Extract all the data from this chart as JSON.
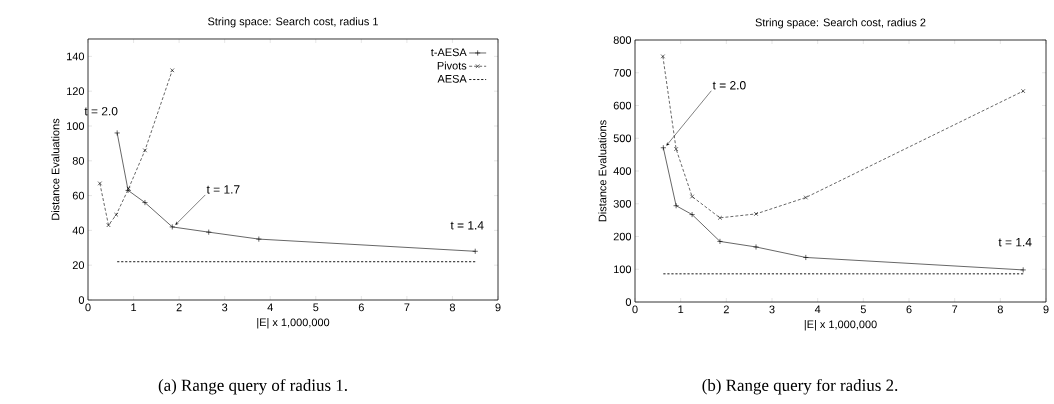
{
  "chart_data": [
    {
      "type": "line",
      "title": "String space: Search cost, radius 1",
      "xlabel": "|E| x 1,000,000",
      "ylabel": "Distance Evaluations",
      "xlim": [
        0,
        9
      ],
      "xticks": [
        0,
        1,
        2,
        3,
        4,
        5,
        6,
        7,
        8,
        9
      ],
      "ylim": [
        0,
        150
      ],
      "yticks": [
        0,
        20,
        40,
        60,
        80,
        100,
        120,
        140
      ],
      "legend": "top right",
      "grid": false,
      "annotations": [
        {
          "text": "t = 2.0",
          "x": 0.64,
          "y": 96
        },
        {
          "text": "t = 1.7",
          "x": 1.85,
          "y": 42
        },
        {
          "text": "t = 1.4",
          "x": 8.5,
          "y": 27
        },
        "(a) Range query of radius 1."
      ],
      "series": [
        {
          "name": "t-AESA",
          "color": "#000000",
          "marker": "plus",
          "line_style": "solid",
          "x": [
            0.64,
            0.88,
            1.25,
            1.85,
            2.65,
            3.75,
            8.5
          ],
          "values": [
            96,
            63,
            56,
            42,
            39,
            35,
            28
          ]
        },
        {
          "name": "Pivots",
          "color": "#000000",
          "marker": "cross",
          "line_style": "dashed",
          "x": [
            0.26,
            0.45,
            0.62,
            0.89,
            1.25,
            1.85
          ],
          "values": [
            67,
            43,
            49,
            64,
            86,
            132
          ]
        },
        {
          "name": "AESA",
          "color": "#000000",
          "marker": "none",
          "line_style": "dotted",
          "x": [
            0.64,
            8.5
          ],
          "values": [
            22,
            22
          ]
        }
      ]
    },
    {
      "type": "line",
      "title": "String space: Search cost, radius 2",
      "xlabel": "|E| x 1,000,000",
      "ylabel": "Distance Evaluations",
      "xlim": [
        0,
        9
      ],
      "xticks": [
        0,
        1,
        2,
        3,
        4,
        5,
        6,
        7,
        8,
        9
      ],
      "ylim": [
        0,
        800
      ],
      "yticks": [
        0,
        100,
        200,
        300,
        400,
        500,
        600,
        700,
        800
      ],
      "grid": false,
      "annotations": [
        {
          "text": "t = 2.0",
          "x": 0.62,
          "y": 471
        },
        {
          "text": "t = 1.4",
          "x": 8.5,
          "y": 98
        },
        "(b) Range query for radius 2."
      ],
      "series": [
        {
          "color": "#000000",
          "marker": "plus",
          "line_style": "solid",
          "x": [
            0.62,
            0.9,
            1.25,
            1.86,
            2.65,
            3.74,
            8.5
          ],
          "values": [
            471,
            294,
            267,
            185,
            168,
            136,
            98
          ]
        },
        {
          "color": "#000000",
          "marker": "cross",
          "line_style": "dashed",
          "x": [
            0.61,
            0.9,
            1.25,
            1.86,
            2.65,
            3.74,
            8.5
          ],
          "values": [
            750,
            467,
            322,
            257,
            269,
            319,
            644
          ]
        },
        {
          "color": "#000000",
          "marker": "none",
          "line_style": "dotted",
          "x": [
            0.62,
            8.5
          ],
          "values": [
            86,
            86
          ]
        }
      ]
    }
  ]
}
